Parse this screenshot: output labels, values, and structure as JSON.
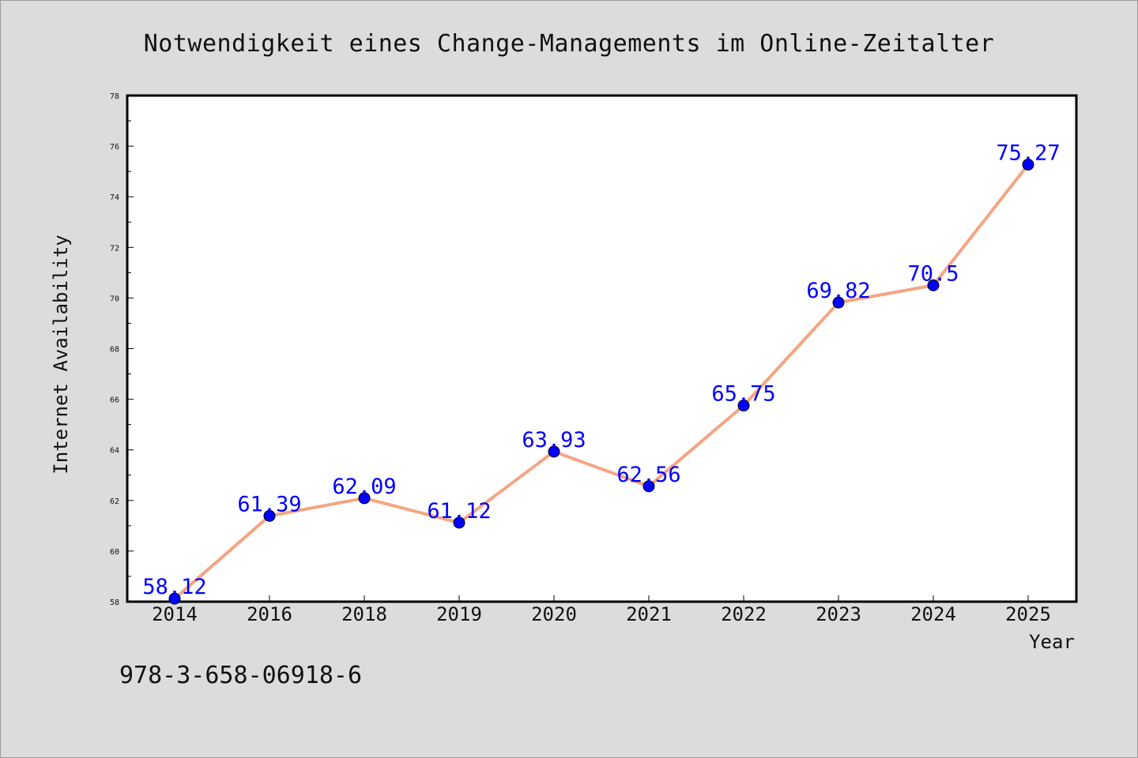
{
  "chart_data": {
    "type": "line",
    "title": "Notwendigkeit eines Change-Managements im Online-Zeitalter",
    "xlabel": "Year",
    "ylabel": "Internet Availability",
    "categories": [
      "2014",
      "2016",
      "2018",
      "2019",
      "2020",
      "2021",
      "2022",
      "2023",
      "2024",
      "2025"
    ],
    "series": [
      {
        "values": [
          58.12,
          61.39,
          62.09,
          61.12,
          63.93,
          62.56,
          65.75,
          69.82,
          70.5,
          75.27
        ],
        "labels": [
          "58.12",
          "61.39",
          "62.09",
          "61.12",
          "63.93",
          "62.56",
          "65.75",
          "69.82",
          "70.5",
          "75.27"
        ],
        "line_color": "#f4a582",
        "marker_color": "#0000ff"
      }
    ],
    "ylim": [
      58,
      78
    ],
    "yticks": [
      "58",
      "60",
      "62",
      "64",
      "66",
      "68",
      "70",
      "72",
      "74",
      "76",
      "78"
    ],
    "grid": false,
    "legend": "none"
  },
  "footnote": "978-3-658-06918-6",
  "colors": {
    "background": "#dcdcdc",
    "plot_area": "#ffffff",
    "line": "#f4a582",
    "marker": "#0000ff",
    "data_label": "#0000ff"
  }
}
